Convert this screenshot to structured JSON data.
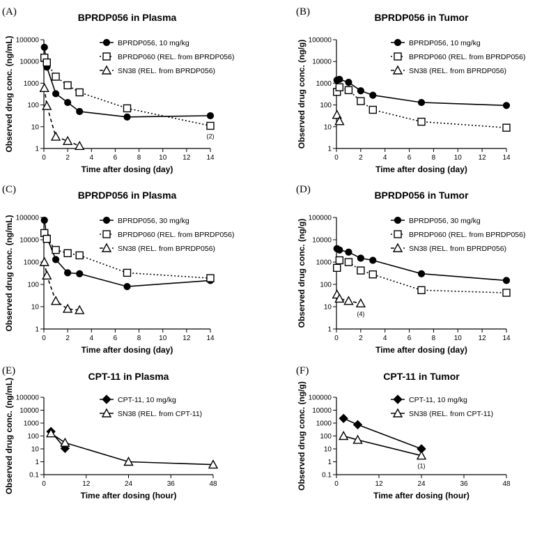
{
  "chart_data": [
    {
      "type": "line",
      "panel_label": "(A)",
      "title": "BPRDP056 in Plasma",
      "xlabel": "Time after dosing (day)",
      "ylabel": "Observed drug conc. (ng/mL)",
      "yscale": "log",
      "ylim": [
        1,
        100000
      ],
      "xlim": [
        0,
        14
      ],
      "xticks": [
        "0",
        "2",
        "4",
        "6",
        "8",
        "10",
        "12",
        "14"
      ],
      "yticks": [
        "1",
        "10",
        "100",
        "1000",
        "10000",
        "100000"
      ],
      "legend_position": "top-right",
      "series": [
        {
          "name": "BPRDP056, 10 mg/kg",
          "marker": "filled-circle",
          "line": "solid",
          "x": [
            0.042,
            0.25,
            1,
            2,
            3,
            7,
            14
          ],
          "y": [
            45000,
            5500,
            330,
            130,
            50,
            28,
            32
          ]
        },
        {
          "name": "BPRDP060 (REL. from BPRDP056)",
          "marker": "open-square",
          "line": "dotted",
          "x": [
            0.042,
            0.25,
            1,
            2,
            3,
            7,
            14
          ],
          "y": [
            15000,
            9000,
            2000,
            800,
            380,
            70,
            11
          ]
        },
        {
          "name": "SN38 (REL. from BPRDP056)",
          "marker": "open-triangle",
          "line": "dashed",
          "x": [
            0.042,
            0.25,
            1,
            2,
            3
          ],
          "y": [
            600,
            90,
            3.5,
            2.2,
            1.3
          ]
        }
      ],
      "annotations": [
        {
          "text": "(2)",
          "x": 14,
          "y": 11
        }
      ]
    },
    {
      "type": "line",
      "panel_label": "(B)",
      "title": "BPRDP056 in Tumor",
      "xlabel": "Time after dosing (day)",
      "ylabel": "Observed drug conc. (ng/g)",
      "yscale": "log",
      "ylim": [
        1,
        100000
      ],
      "xlim": [
        0,
        14
      ],
      "xticks": [
        "0",
        "2",
        "4",
        "6",
        "8",
        "10",
        "12",
        "14"
      ],
      "yticks": [
        "1",
        "10",
        "100",
        "1000",
        "10000",
        "100000"
      ],
      "legend_position": "top-right",
      "series": [
        {
          "name": "BPRDP056, 10 mg/kg",
          "marker": "filled-circle",
          "line": "solid",
          "x": [
            0.042,
            0.25,
            1,
            2,
            3,
            7,
            14
          ],
          "y": [
            1400,
            1500,
            1100,
            450,
            280,
            130,
            95
          ]
        },
        {
          "name": "BPRDP060 (REL. from BPRDP056)",
          "marker": "open-square",
          "line": "dotted",
          "x": [
            0.042,
            0.25,
            1,
            2,
            3,
            7,
            14
          ],
          "y": [
            400,
            650,
            480,
            150,
            60,
            17,
            9
          ]
        },
        {
          "name": "SN38 (REL. from BPRDP056)",
          "marker": "open-triangle",
          "line": "dashed",
          "x": [
            0.042,
            0.25
          ],
          "y": [
            35,
            18
          ]
        }
      ],
      "annotations": []
    },
    {
      "type": "line",
      "panel_label": "(C)",
      "title": "BPRDP056 in Plasma",
      "xlabel": "Time after dosing (day)",
      "ylabel": "Observed drug conc. (ng/mL)",
      "yscale": "log",
      "ylim": [
        1,
        100000
      ],
      "xlim": [
        0,
        14
      ],
      "xticks": [
        "0",
        "2",
        "4",
        "6",
        "8",
        "10",
        "12",
        "14"
      ],
      "yticks": [
        "1",
        "10",
        "100",
        "1000",
        "10000",
        "100000"
      ],
      "legend_position": "top-right",
      "series": [
        {
          "name": "BPRDP056, 30 mg/kg",
          "marker": "filled-circle",
          "line": "solid",
          "x": [
            0.042,
            0.25,
            1,
            2,
            3,
            7,
            14
          ],
          "y": [
            75000,
            13000,
            1300,
            330,
            300,
            80,
            150
          ]
        },
        {
          "name": "BPRDP060 (REL. from BPRDP056)",
          "marker": "open-square",
          "line": "dotted",
          "x": [
            0.042,
            0.25,
            1,
            2,
            3,
            7,
            14
          ],
          "y": [
            20000,
            11000,
            3500,
            2500,
            2000,
            330,
            190
          ]
        },
        {
          "name": "SN38 (REL. from BPRDP056)",
          "marker": "open-triangle",
          "line": "dashed",
          "x": [
            0.042,
            0.25,
            1,
            2,
            3
          ],
          "y": [
            1000,
            250,
            18,
            8,
            7
          ]
        }
      ],
      "annotations": []
    },
    {
      "type": "line",
      "panel_label": "(D)",
      "title": "BPRDP056 in Tumor",
      "xlabel": "Time after dosing (day)",
      "ylabel": "Observed drug conc. (ng/g)",
      "yscale": "log",
      "ylim": [
        1,
        100000
      ],
      "xlim": [
        0,
        14
      ],
      "xticks": [
        "0",
        "2",
        "4",
        "6",
        "8",
        "10",
        "12",
        "14"
      ],
      "yticks": [
        "1",
        "10",
        "100",
        "1000",
        "10000",
        "100000"
      ],
      "legend_position": "top-right",
      "series": [
        {
          "name": "BPRDP056, 30 mg/kg",
          "marker": "filled-circle",
          "line": "solid",
          "x": [
            0.042,
            0.25,
            1,
            2,
            3,
            7,
            14
          ],
          "y": [
            4000,
            3500,
            2800,
            1500,
            1200,
            300,
            150
          ]
        },
        {
          "name": "BPRDP060 (REL. from BPRDP056)",
          "marker": "open-square",
          "line": "dotted",
          "x": [
            0.042,
            0.25,
            1,
            2,
            3,
            7,
            14
          ],
          "y": [
            550,
            1200,
            1000,
            420,
            280,
            55,
            42
          ]
        },
        {
          "name": "SN38 (REL. from BPRDP056)",
          "marker": "open-triangle",
          "line": "dashed",
          "x": [
            0.042,
            0.25,
            1,
            2
          ],
          "y": [
            35,
            23,
            18,
            14
          ]
        }
      ],
      "annotations": [
        {
          "text": "(4)",
          "x": 2,
          "y": 14
        }
      ]
    },
    {
      "type": "line",
      "panel_label": "(E)",
      "title": "CPT-11 in Plasma",
      "xlabel": "Time after dosing (hour)",
      "ylabel": "Observed drug conc. (ng/mL)",
      "yscale": "log",
      "ylim": [
        0.1,
        100000
      ],
      "xlim": [
        0,
        48
      ],
      "xticks": [
        "0",
        "12",
        "24",
        "36",
        "48"
      ],
      "yticks": [
        "0.1",
        "1",
        "10",
        "100",
        "1000",
        "10000",
        "100000"
      ],
      "legend_position": "top-right",
      "series": [
        {
          "name": "CPT-11, 10 mg/kg",
          "marker": "filled-diamond",
          "line": "solid",
          "x": [
            2,
            6
          ],
          "y": [
            220,
            11
          ]
        },
        {
          "name": "SN38 (REL. from CPT-11)",
          "marker": "open-triangle",
          "line": "solid",
          "x": [
            2,
            6,
            24,
            48
          ],
          "y": [
            160,
            30,
            1,
            0.6
          ]
        }
      ],
      "annotations": []
    },
    {
      "type": "line",
      "panel_label": "(F)",
      "title": "CPT-11 in Tumor",
      "xlabel": "Time after dosing (hour)",
      "ylabel": "Observed drug conc. (ng/g)",
      "yscale": "log",
      "ylim": [
        0.1,
        100000
      ],
      "xlim": [
        0,
        48
      ],
      "xticks": [
        "0",
        "12",
        "24",
        "36",
        "48"
      ],
      "yticks": [
        "0.1",
        "1",
        "10",
        "100",
        "1000",
        "10000",
        "100000"
      ],
      "legend_position": "top-right",
      "series": [
        {
          "name": "CPT-11, 10 mg/kg",
          "marker": "filled-diamond",
          "line": "solid",
          "x": [
            2,
            6,
            24
          ],
          "y": [
            2300,
            750,
            10
          ]
        },
        {
          "name": "SN38 (REL. from CPT-11)",
          "marker": "open-triangle",
          "line": "solid",
          "x": [
            2,
            6,
            24
          ],
          "y": [
            100,
            50,
            3
          ]
        }
      ],
      "annotations": [
        {
          "text": "(1)",
          "x": 24,
          "y": 3
        }
      ]
    }
  ]
}
